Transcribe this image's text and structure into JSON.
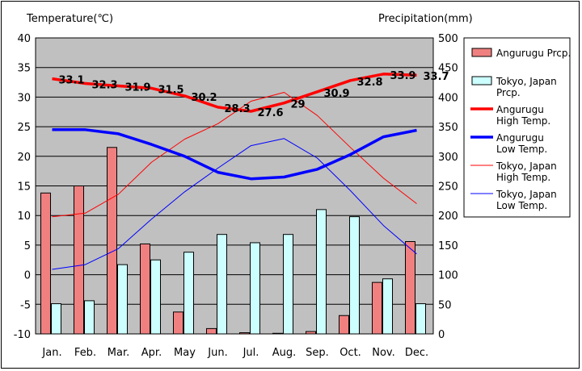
{
  "chart_data": {
    "type": "bar",
    "categories": [
      "Jan.",
      "Feb.",
      "Mar.",
      "Apr.",
      "May",
      "Jun.",
      "Jul.",
      "Aug.",
      "Sep.",
      "Oct.",
      "Nov.",
      "Dec."
    ],
    "ylabel_left": "Temperature(℃)",
    "ylabel_right": "Precipitation(mm)",
    "ylim_left": [
      -10,
      40
    ],
    "ylim_right": [
      0,
      500
    ],
    "yticks_left": [
      "40",
      "35",
      "30",
      "25",
      "20",
      "15",
      "10",
      "5",
      "0",
      "-5",
      "-10"
    ],
    "yticks_right": [
      "500",
      "450",
      "400",
      "350",
      "300",
      "250",
      "200",
      "150",
      "100",
      "50",
      "0"
    ],
    "grid": true,
    "legend_position": "right",
    "bar_series": [
      {
        "name": "Angurugu Prcp.",
        "color": "#f08080",
        "values": [
          238,
          250,
          315,
          152,
          37,
          9,
          2,
          1,
          4,
          31,
          87,
          156
        ]
      },
      {
        "name": "Tokyo, Japan Prcp.",
        "color": "#ccffff",
        "values": [
          51,
          56,
          117,
          125,
          138,
          168,
          154,
          168,
          210,
          198,
          93,
          51
        ]
      }
    ],
    "line_series": [
      {
        "name": "Angurugu High Temp.",
        "color": "#ff0000",
        "width": "thick",
        "values": [
          33.1,
          32.3,
          31.9,
          31.5,
          30.2,
          28.3,
          27.6,
          29,
          30.9,
          32.8,
          33.9,
          33.7
        ]
      },
      {
        "name": "Angurugu Low Temp.",
        "color": "#0000ff",
        "width": "thick",
        "values": [
          24.5,
          24.5,
          23.8,
          22.0,
          20.0,
          17.3,
          16.2,
          16.5,
          17.8,
          20.3,
          23.3,
          24.4
        ]
      },
      {
        "name": "Tokyo, Japan High Temp.",
        "color": "#ff0000",
        "width": "thin",
        "values": [
          9.8,
          10.4,
          13.6,
          19.0,
          22.9,
          25.5,
          29.3,
          30.8,
          26.9,
          21.5,
          16.3,
          12.0
        ]
      },
      {
        "name": "Tokyo, Japan Low Temp.",
        "color": "#0000ff",
        "width": "thin",
        "values": [
          0.9,
          1.7,
          4.4,
          9.4,
          14.0,
          18.0,
          21.8,
          23.0,
          19.7,
          14.2,
          8.3,
          3.5
        ]
      }
    ],
    "data_labels": [
      "33.1",
      "32.3",
      "31.9",
      "31.5",
      "30.2",
      "28.3",
      "27.6",
      "29",
      "30.9",
      "32.8",
      "33.9",
      "33.7"
    ]
  },
  "legend": [
    {
      "lines": [
        "Angurugu Prcp."
      ],
      "kind": "bar",
      "color": "#f08080"
    },
    {
      "lines": [
        "Tokyo, Japan",
        "Prcp."
      ],
      "kind": "bar",
      "color": "#ccffff"
    },
    {
      "lines": [
        "Angurugu",
        "High Temp."
      ],
      "kind": "line",
      "color": "#ff0000",
      "width": "thick"
    },
    {
      "lines": [
        "Angurugu",
        "Low Temp."
      ],
      "kind": "line",
      "color": "#0000ff",
      "width": "thick"
    },
    {
      "lines": [
        "Tokyo, Japan",
        "High Temp."
      ],
      "kind": "line",
      "color": "#ff0000",
      "width": "thin"
    },
    {
      "lines": [
        "Tokyo, Japan",
        "Low Temp."
      ],
      "kind": "line",
      "color": "#0000ff",
      "width": "thin"
    }
  ]
}
